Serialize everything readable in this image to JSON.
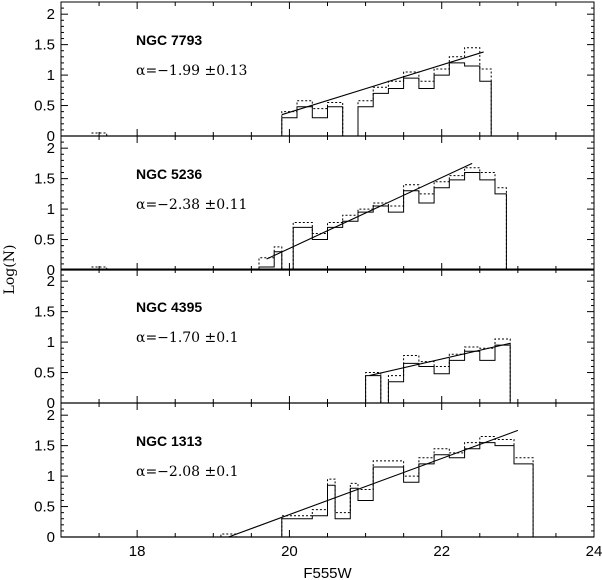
{
  "chart_data": {
    "type": "line",
    "xlabel": "F555W",
    "ylabel": "Log(N)",
    "xlim": [
      17,
      24
    ],
    "ylim": [
      0,
      2.2
    ],
    "xticks": [
      "18",
      "20",
      "22",
      "24"
    ],
    "yticks": [
      "0",
      "0.5",
      "1",
      "1.5",
      "2"
    ],
    "panels": [
      {
        "name": "NGC 7793",
        "alpha": "α=−1.99  ±0.13",
        "solid_steps": [
          [
            19.9,
            0.0
          ],
          [
            19.9,
            0.3
          ],
          [
            20.1,
            0.3
          ],
          [
            20.1,
            0.48
          ],
          [
            20.3,
            0.48
          ],
          [
            20.3,
            0.3
          ],
          [
            20.5,
            0.3
          ],
          [
            20.5,
            0.48
          ],
          [
            20.7,
            0.48
          ],
          [
            20.7,
            0.0
          ],
          [
            20.9,
            0.0
          ],
          [
            20.9,
            0.48
          ],
          [
            21.1,
            0.48
          ],
          [
            21.1,
            0.7
          ],
          [
            21.3,
            0.7
          ],
          [
            21.3,
            0.78
          ],
          [
            21.5,
            0.78
          ],
          [
            21.5,
            0.95
          ],
          [
            21.7,
            0.95
          ],
          [
            21.7,
            0.78
          ],
          [
            21.9,
            0.78
          ],
          [
            21.9,
            1.0
          ],
          [
            22.1,
            1.0
          ],
          [
            22.1,
            1.2
          ],
          [
            22.3,
            1.2
          ],
          [
            22.3,
            1.15
          ],
          [
            22.5,
            1.15
          ],
          [
            22.5,
            0.9
          ],
          [
            22.65,
            0.9
          ],
          [
            22.65,
            0.0
          ]
        ],
        "dotted_steps": [
          [
            17.4,
            0.05
          ],
          [
            17.6,
            0.05
          ],
          [
            17.6,
            0.0
          ],
          [
            19.9,
            0.0
          ],
          [
            19.9,
            0.4
          ],
          [
            20.1,
            0.4
          ],
          [
            20.1,
            0.58
          ],
          [
            20.3,
            0.58
          ],
          [
            20.3,
            0.45
          ],
          [
            20.5,
            0.45
          ],
          [
            20.5,
            0.55
          ],
          [
            20.7,
            0.55
          ],
          [
            20.7,
            0.0
          ],
          [
            20.9,
            0.0
          ],
          [
            20.9,
            0.58
          ],
          [
            21.1,
            0.58
          ],
          [
            21.1,
            0.8
          ],
          [
            21.3,
            0.8
          ],
          [
            21.3,
            0.9
          ],
          [
            21.5,
            0.9
          ],
          [
            21.5,
            1.05
          ],
          [
            21.7,
            1.05
          ],
          [
            21.7,
            0.9
          ],
          [
            21.9,
            0.9
          ],
          [
            21.9,
            1.1
          ],
          [
            22.1,
            1.1
          ],
          [
            22.1,
            1.3
          ],
          [
            22.3,
            1.3
          ],
          [
            22.3,
            1.45
          ],
          [
            22.5,
            1.45
          ],
          [
            22.5,
            1.1
          ],
          [
            22.65,
            1.1
          ],
          [
            22.65,
            0.0
          ]
        ],
        "fit": [
          [
            19.9,
            0.35
          ],
          [
            22.55,
            1.38
          ]
        ]
      },
      {
        "name": "NGC 5236",
        "alpha": "α=−2.38  ±0.11",
        "solid_steps": [
          [
            19.6,
            0.0
          ],
          [
            19.6,
            0.05
          ],
          [
            19.8,
            0.05
          ],
          [
            19.8,
            0.3
          ],
          [
            19.9,
            0.3
          ],
          [
            19.9,
            0.0
          ],
          [
            20.05,
            0.0
          ],
          [
            20.05,
            0.7
          ],
          [
            20.3,
            0.7
          ],
          [
            20.3,
            0.5
          ],
          [
            20.5,
            0.5
          ],
          [
            20.5,
            0.7
          ],
          [
            20.7,
            0.7
          ],
          [
            20.7,
            0.8
          ],
          [
            20.9,
            0.8
          ],
          [
            20.9,
            0.95
          ],
          [
            21.1,
            0.95
          ],
          [
            21.1,
            1.05
          ],
          [
            21.3,
            1.05
          ],
          [
            21.3,
            0.95
          ],
          [
            21.5,
            0.95
          ],
          [
            21.5,
            1.3
          ],
          [
            21.7,
            1.3
          ],
          [
            21.7,
            1.1
          ],
          [
            21.9,
            1.1
          ],
          [
            21.9,
            1.35
          ],
          [
            22.1,
            1.35
          ],
          [
            22.1,
            1.48
          ],
          [
            22.3,
            1.48
          ],
          [
            22.3,
            1.6
          ],
          [
            22.5,
            1.6
          ],
          [
            22.5,
            1.48
          ],
          [
            22.7,
            1.48
          ],
          [
            22.7,
            1.25
          ],
          [
            22.85,
            1.25
          ],
          [
            22.85,
            0.0
          ]
        ],
        "dotted_steps": [
          [
            17.4,
            0.05
          ],
          [
            17.6,
            0.05
          ],
          [
            17.6,
            0.0
          ],
          [
            19.6,
            0.0
          ],
          [
            19.6,
            0.2
          ],
          [
            19.8,
            0.2
          ],
          [
            19.8,
            0.38
          ],
          [
            19.9,
            0.38
          ],
          [
            19.9,
            0.0
          ],
          [
            20.05,
            0.0
          ],
          [
            20.05,
            0.78
          ],
          [
            20.3,
            0.78
          ],
          [
            20.3,
            0.6
          ],
          [
            20.5,
            0.6
          ],
          [
            20.5,
            0.78
          ],
          [
            20.7,
            0.78
          ],
          [
            20.7,
            0.9
          ],
          [
            20.9,
            0.9
          ],
          [
            20.9,
            1.0
          ],
          [
            21.1,
            1.0
          ],
          [
            21.1,
            1.1
          ],
          [
            21.3,
            1.1
          ],
          [
            21.3,
            1.05
          ],
          [
            21.5,
            1.05
          ],
          [
            21.5,
            1.4
          ],
          [
            21.7,
            1.4
          ],
          [
            21.7,
            1.25
          ],
          [
            21.9,
            1.25
          ],
          [
            21.9,
            1.45
          ],
          [
            22.1,
            1.45
          ],
          [
            22.1,
            1.55
          ],
          [
            22.3,
            1.55
          ],
          [
            22.3,
            1.68
          ],
          [
            22.5,
            1.68
          ],
          [
            22.5,
            1.6
          ],
          [
            22.7,
            1.6
          ],
          [
            22.7,
            1.35
          ],
          [
            22.85,
            1.35
          ],
          [
            22.85,
            0.0
          ]
        ],
        "fit": [
          [
            19.7,
            0.18
          ],
          [
            22.4,
            1.75
          ]
        ]
      },
      {
        "name": "NGC 4395",
        "alpha": "α=−1.70  ±0.1",
        "solid_steps": [
          [
            21.0,
            0.0
          ],
          [
            21.0,
            0.45
          ],
          [
            21.2,
            0.45
          ],
          [
            21.2,
            0.0
          ],
          [
            21.3,
            0.0
          ],
          [
            21.3,
            0.35
          ],
          [
            21.5,
            0.35
          ],
          [
            21.5,
            0.65
          ],
          [
            21.7,
            0.65
          ],
          [
            21.7,
            0.6
          ],
          [
            21.9,
            0.6
          ],
          [
            21.9,
            0.48
          ],
          [
            22.1,
            0.48
          ],
          [
            22.1,
            0.7
          ],
          [
            22.3,
            0.7
          ],
          [
            22.3,
            0.85
          ],
          [
            22.5,
            0.85
          ],
          [
            22.5,
            0.7
          ],
          [
            22.7,
            0.7
          ],
          [
            22.7,
            0.95
          ],
          [
            22.9,
            0.95
          ],
          [
            22.9,
            0.0
          ]
        ],
        "dotted_steps": [
          [
            19.5,
            0.0
          ],
          [
            19.55,
            0.0
          ],
          [
            19.6,
            0.0
          ],
          [
            21.0,
            0.0
          ],
          [
            21.0,
            0.5
          ],
          [
            21.2,
            0.5
          ],
          [
            21.2,
            0.0
          ],
          [
            21.3,
            0.0
          ],
          [
            21.3,
            0.45
          ],
          [
            21.5,
            0.45
          ],
          [
            21.5,
            0.78
          ],
          [
            21.7,
            0.78
          ],
          [
            21.7,
            0.68
          ],
          [
            21.9,
            0.68
          ],
          [
            21.9,
            0.6
          ],
          [
            22.1,
            0.6
          ],
          [
            22.1,
            0.8
          ],
          [
            22.3,
            0.8
          ],
          [
            22.3,
            0.92
          ],
          [
            22.5,
            0.92
          ],
          [
            22.5,
            0.9
          ],
          [
            22.7,
            0.9
          ],
          [
            22.7,
            1.05
          ],
          [
            22.9,
            1.05
          ],
          [
            22.9,
            0.0
          ]
        ],
        "fit": [
          [
            21.05,
            0.45
          ],
          [
            22.9,
            0.98
          ]
        ]
      },
      {
        "name": "NGC 1313",
        "alpha": "α=−2.08  ±0.1",
        "solid_steps": [
          [
            19.9,
            0.0
          ],
          [
            19.9,
            0.3
          ],
          [
            20.3,
            0.3
          ],
          [
            20.3,
            0.35
          ],
          [
            20.5,
            0.35
          ],
          [
            20.5,
            0.85
          ],
          [
            20.6,
            0.85
          ],
          [
            20.6,
            0.3
          ],
          [
            20.8,
            0.3
          ],
          [
            20.8,
            0.8
          ],
          [
            20.9,
            0.8
          ],
          [
            20.9,
            0.6
          ],
          [
            21.1,
            0.6
          ],
          [
            21.1,
            1.15
          ],
          [
            21.5,
            1.15
          ],
          [
            21.5,
            0.9
          ],
          [
            21.7,
            0.9
          ],
          [
            21.7,
            1.2
          ],
          [
            21.9,
            1.2
          ],
          [
            21.9,
            1.35
          ],
          [
            22.1,
            1.35
          ],
          [
            22.1,
            1.3
          ],
          [
            22.3,
            1.3
          ],
          [
            22.3,
            1.45
          ],
          [
            22.5,
            1.45
          ],
          [
            22.5,
            1.55
          ],
          [
            22.7,
            1.55
          ],
          [
            22.7,
            1.5
          ],
          [
            22.95,
            1.5
          ],
          [
            22.95,
            1.2
          ],
          [
            23.2,
            1.2
          ],
          [
            23.2,
            0.0
          ]
        ],
        "dotted_steps": [
          [
            19.0,
            0.0
          ],
          [
            19.1,
            0.0
          ],
          [
            19.1,
            0.05
          ],
          [
            19.3,
            0.05
          ],
          [
            19.3,
            0.0
          ],
          [
            19.9,
            0.0
          ],
          [
            19.9,
            0.35
          ],
          [
            20.3,
            0.35
          ],
          [
            20.3,
            0.45
          ],
          [
            20.5,
            0.45
          ],
          [
            20.5,
            0.95
          ],
          [
            20.6,
            0.95
          ],
          [
            20.6,
            0.4
          ],
          [
            20.8,
            0.4
          ],
          [
            20.8,
            0.88
          ],
          [
            20.9,
            0.88
          ],
          [
            20.9,
            0.78
          ],
          [
            21.1,
            0.78
          ],
          [
            21.1,
            1.25
          ],
          [
            21.5,
            1.25
          ],
          [
            21.5,
            1.0
          ],
          [
            21.7,
            1.0
          ],
          [
            21.7,
            1.3
          ],
          [
            21.9,
            1.3
          ],
          [
            21.9,
            1.45
          ],
          [
            22.1,
            1.45
          ],
          [
            22.1,
            1.38
          ],
          [
            22.3,
            1.38
          ],
          [
            22.3,
            1.55
          ],
          [
            22.5,
            1.55
          ],
          [
            22.5,
            1.65
          ],
          [
            22.7,
            1.65
          ],
          [
            22.7,
            1.6
          ],
          [
            22.95,
            1.6
          ],
          [
            22.95,
            1.3
          ],
          [
            23.2,
            1.3
          ],
          [
            23.2,
            0.0
          ]
        ],
        "fit": [
          [
            19.2,
            0.0
          ],
          [
            23.0,
            1.75
          ]
        ]
      }
    ]
  }
}
